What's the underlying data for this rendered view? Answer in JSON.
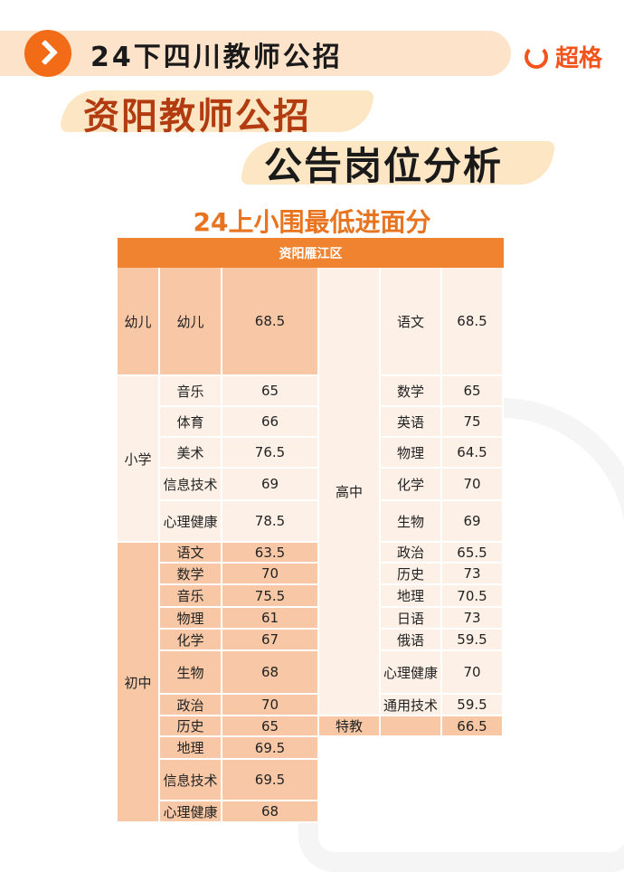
{
  "header": {
    "banner_title": "24下四川教师公招",
    "brand": "超格",
    "brand_color": "#f2541b",
    "arrow_icon": "chevron-right-icon"
  },
  "titles": {
    "line1": "资阳教师公招",
    "line2": "公告岗位分析",
    "subtitle": "24上小围最低进面分"
  },
  "table": {
    "region": "资阳雁江区",
    "left": [
      {
        "level": "幼儿",
        "rows": [
          [
            "幼儿",
            "68.5"
          ]
        ]
      },
      {
        "level": "小学",
        "rows": [
          [
            "音乐",
            "65"
          ],
          [
            "体育",
            "66"
          ],
          [
            "美术",
            "76.5"
          ],
          [
            "信息技术",
            "69"
          ],
          [
            "心理健康",
            "78.5"
          ]
        ]
      },
      {
        "level": "初中",
        "rows": [
          [
            "语文",
            "63.5"
          ],
          [
            "数学",
            "70"
          ],
          [
            "音乐",
            "75.5"
          ],
          [
            "物理",
            "61"
          ],
          [
            "化学",
            "67"
          ],
          [
            "生物",
            "68"
          ],
          [
            "政治",
            "70"
          ],
          [
            "历史",
            "65"
          ],
          [
            "地理",
            "69.5"
          ],
          [
            "信息技术",
            "69.5"
          ],
          [
            "心理健康",
            "68"
          ]
        ]
      }
    ],
    "right": [
      {
        "level": "高中",
        "rows": [
          [
            "语文",
            "68.5"
          ],
          [
            "数学",
            "65"
          ],
          [
            "英语",
            "75"
          ],
          [
            "物理",
            "64.5"
          ],
          [
            "化学",
            "70"
          ],
          [
            "生物",
            "69"
          ],
          [
            "政治",
            "65.5"
          ],
          [
            "历史",
            "73"
          ],
          [
            "地理",
            "70.5"
          ],
          [
            "日语",
            "73"
          ],
          [
            "俄语",
            "59.5"
          ],
          [
            "心理健康",
            "70"
          ],
          [
            "通用技术",
            "59.5"
          ]
        ]
      },
      {
        "level": "特教",
        "rows": [
          [
            "",
            "66.5"
          ]
        ]
      }
    ]
  }
}
